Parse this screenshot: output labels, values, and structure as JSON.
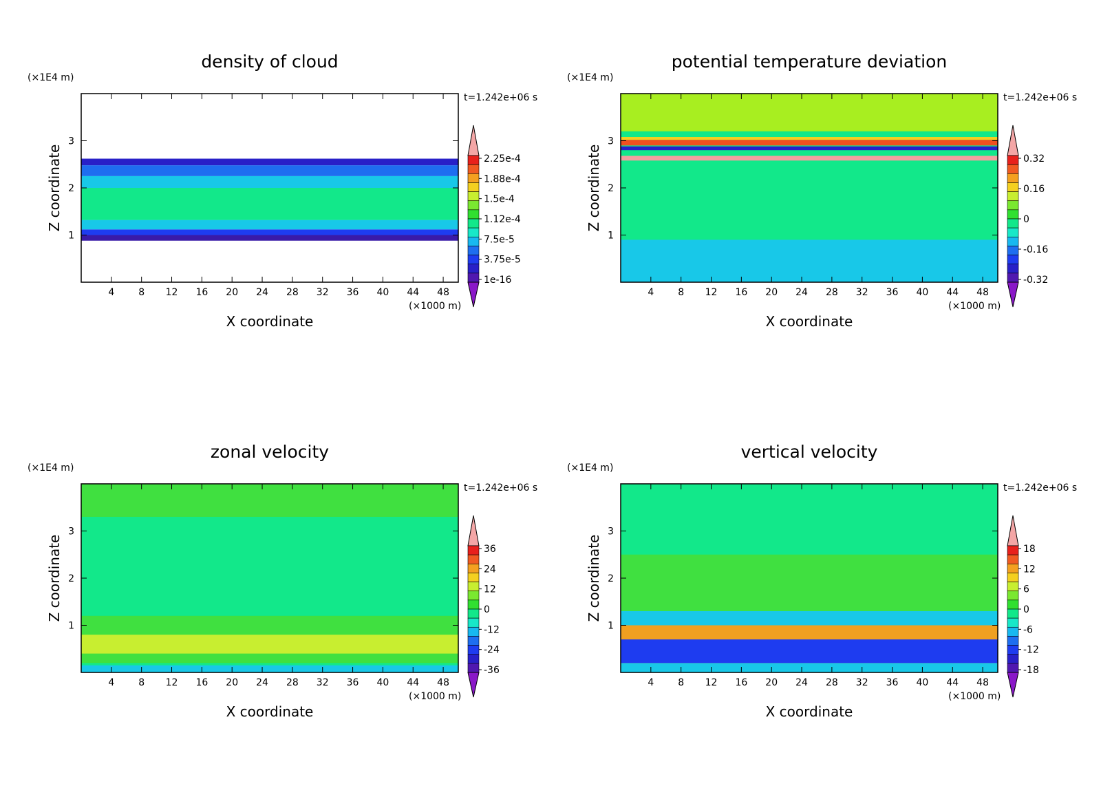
{
  "chart_data": [
    {
      "type": "heatmap",
      "title": "density of cloud",
      "xlabel": "X coordinate",
      "ylabel": "Z coordinate",
      "x_unit": "(×1000 m)",
      "y_unit": "(×1E4 m)",
      "time_label": "t=1.242e+06 s",
      "xlim": [
        0,
        50
      ],
      "ylim": [
        0,
        4
      ],
      "xticks": [
        "4",
        "8",
        "12",
        "16",
        "20",
        "24",
        "28",
        "32",
        "36",
        "40",
        "44",
        "48"
      ],
      "yticks": [
        "1",
        "2",
        "3"
      ],
      "colorbar_labels": [
        "2.25e-4",
        "1.88e-4",
        "1.5e-4",
        "1.12e-4",
        "7.5e-5",
        "3.75e-5",
        "1e-16"
      ],
      "background": "#ffffff",
      "layers": [
        {
          "z": [
            0.88,
            1.0
          ],
          "color": "#3a1aa8"
        },
        {
          "z": [
            1.0,
            1.12
          ],
          "color": "#1e3cf0"
        },
        {
          "z": [
            1.12,
            1.32
          ],
          "color": "#18c8e8"
        },
        {
          "z": [
            1.32,
            2.0
          ],
          "color": "#12e88a"
        },
        {
          "z": [
            2.0,
            2.25
          ],
          "color": "#18c8e8"
        },
        {
          "z": [
            2.25,
            2.48
          ],
          "color": "#1e6ef0"
        },
        {
          "z": [
            2.48,
            2.62
          ],
          "color": "#2820c8"
        }
      ]
    },
    {
      "type": "heatmap",
      "title": "potential temperature deviation",
      "xlabel": "X coordinate",
      "ylabel": "Z coordinate",
      "x_unit": "(×1000 m)",
      "y_unit": "(×1E4 m)",
      "time_label": "t=1.242e+06 s",
      "xlim": [
        0,
        50
      ],
      "ylim": [
        0,
        4
      ],
      "xticks": [
        "4",
        "8",
        "12",
        "16",
        "20",
        "24",
        "28",
        "32",
        "36",
        "40",
        "44",
        "48"
      ],
      "yticks": [
        "1",
        "2",
        "3"
      ],
      "colorbar_labels": [
        "0.32",
        "0.16",
        "0",
        "-0.16",
        "-0.32"
      ],
      "background": "#12e88a",
      "layers": [
        {
          "z": [
            0,
            0.9
          ],
          "color": "#18c8e8"
        },
        {
          "z": [
            2.58,
            2.68
          ],
          "color": "#f4a0a0"
        },
        {
          "z": [
            2.8,
            2.88
          ],
          "color": "#2820c8"
        },
        {
          "z": [
            2.9,
            3.02
          ],
          "color": "#f05020"
        },
        {
          "z": [
            3.02,
            3.08
          ],
          "color": "#f4d020"
        },
        {
          "z": [
            3.2,
            4.0
          ],
          "color": "#a8ee20"
        }
      ]
    },
    {
      "type": "heatmap",
      "title": "zonal velocity",
      "xlabel": "X coordinate",
      "ylabel": "Z coordinate",
      "x_unit": "(×1000 m)",
      "y_unit": "(×1E4 m)",
      "time_label": "t=1.242e+06 s",
      "xlim": [
        0,
        50
      ],
      "ylim": [
        0,
        4
      ],
      "xticks": [
        "4",
        "8",
        "12",
        "16",
        "20",
        "24",
        "28",
        "32",
        "36",
        "40",
        "44",
        "48"
      ],
      "yticks": [
        "1",
        "2",
        "3"
      ],
      "colorbar_labels": [
        "36",
        "24",
        "12",
        "0",
        "-12",
        "-24",
        "-36"
      ],
      "background": "#12e88a",
      "layers": [
        {
          "z": [
            3.3,
            4.0
          ],
          "color": "#40e040"
        },
        {
          "z": [
            0.2,
            1.2
          ],
          "color": "#40e040"
        },
        {
          "z": [
            0.4,
            0.8
          ],
          "color": "#c8ee30"
        },
        {
          "z": [
            0.0,
            0.15
          ],
          "color": "#18c8e8"
        }
      ]
    },
    {
      "type": "heatmap",
      "title": "vertical velocity",
      "xlabel": "X coordinate",
      "ylabel": "Z coordinate",
      "x_unit": "(×1000 m)",
      "y_unit": "(×1E4 m)",
      "time_label": "t=1.242e+06 s",
      "xlim": [
        0,
        50
      ],
      "ylim": [
        0,
        4
      ],
      "xticks": [
        "4",
        "8",
        "12",
        "16",
        "20",
        "24",
        "28",
        "32",
        "36",
        "40",
        "44",
        "48"
      ],
      "yticks": [
        "1",
        "2",
        "3"
      ],
      "colorbar_labels": [
        "18",
        "12",
        "6",
        "0",
        "-6",
        "-12",
        "-18"
      ],
      "background": "#12e88a",
      "layers": [
        {
          "z": [
            1.3,
            2.5
          ],
          "color": "#40e040"
        },
        {
          "z": [
            0.0,
            1.3
          ],
          "color": "#18c8e8"
        },
        {
          "z": [
            0.2,
            1.0
          ],
          "color": "#f0a020"
        },
        {
          "z": [
            0.2,
            0.7
          ],
          "color": "#1e3cf0"
        }
      ]
    }
  ]
}
